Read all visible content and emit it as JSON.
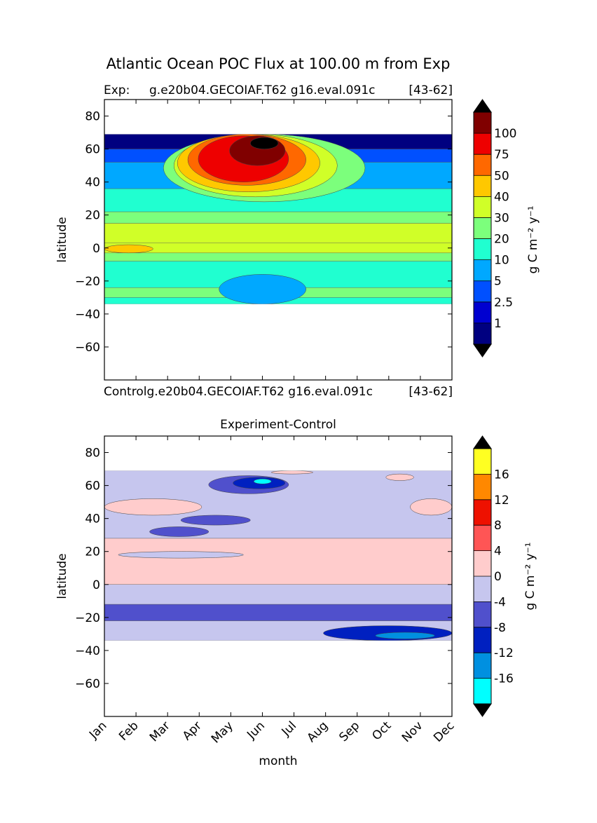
{
  "figure": {
    "suptitle": "Atlantic Ocean POC Flux at 100.00 m from Exp"
  },
  "chart_data": [
    {
      "type": "heatmap",
      "title_left": "Exp:",
      "title_center": "g.e20b04.GECOIAF.T62 g16.eval.091c",
      "title_right": "[43-62]",
      "xlabel": "",
      "ylabel": "latitude",
      "ylim": [
        -80,
        90
      ],
      "yticks": [
        "80",
        "60",
        "40",
        "20",
        "0",
        "−20",
        "−40",
        "−60"
      ],
      "ytick_values": [
        80,
        60,
        40,
        20,
        0,
        -20,
        -40,
        -60
      ],
      "months": [
        "Jan",
        "Feb",
        "Mar",
        "Apr",
        "May",
        "Jun",
        "Jul",
        "Aug",
        "Sep",
        "Oct",
        "Nov",
        "Dec"
      ],
      "data_lat_range": [
        -34,
        69
      ],
      "colorbar": {
        "label": "g C m⁻² y⁻¹",
        "levels": [
          "1",
          "2.5",
          "5",
          "10",
          "20",
          "30",
          "40",
          "50",
          "75",
          "100"
        ],
        "colors": [
          "#000080",
          "#0000d0",
          "#0050ff",
          "#00a8ff",
          "#20ffd0",
          "#7cff7c",
          "#d0ff28",
          "#ffc800",
          "#ff6800",
          "#ee0000",
          "#800000"
        ],
        "extend_colors": [
          "#000000",
          "#000000"
        ]
      },
      "bands": [
        {
          "lat": [
            -34,
            -30
          ],
          "level_index": 4
        },
        {
          "lat": [
            -30,
            -24
          ],
          "level_index": 5
        },
        {
          "lat": [
            -24,
            -8
          ],
          "level_index": 4
        },
        {
          "lat": [
            -8,
            -3
          ],
          "level_index": 5
        },
        {
          "lat": [
            -3,
            3
          ],
          "level_index": 6
        },
        {
          "lat": [
            3,
            15
          ],
          "level_index": 6
        },
        {
          "lat": [
            15,
            22
          ],
          "level_index": 5
        },
        {
          "lat": [
            22,
            36
          ],
          "level_index": 4
        },
        {
          "lat": [
            36,
            52
          ],
          "level_index": 3
        },
        {
          "lat": [
            52,
            60
          ],
          "level_index": 2
        },
        {
          "lat": [
            60,
            69
          ],
          "level_index": 0
        }
      ],
      "features": [
        {
          "name": "southern-low",
          "lon": [
            0.33,
            0.58
          ],
          "lat": [
            -34,
            -16
          ],
          "level_index": 3
        },
        {
          "name": "equatorial-high",
          "lon": [
            0.0,
            0.14
          ],
          "lat": [
            -3,
            2
          ],
          "level_index": 7
        },
        {
          "name": "bloom-outer",
          "lon": [
            0.17,
            0.75
          ],
          "lat": [
            28,
            69
          ],
          "level_index": 5
        },
        {
          "name": "bloom-40",
          "lon": [
            0.2,
            0.67
          ],
          "lat": [
            31,
            69
          ],
          "level_index": 6
        },
        {
          "name": "bloom-50",
          "lon": [
            0.21,
            0.62
          ],
          "lat": [
            34,
            69
          ],
          "level_index": 7
        },
        {
          "name": "bloom-75",
          "lon": [
            0.24,
            0.58
          ],
          "lat": [
            38,
            69
          ],
          "level_index": 8
        },
        {
          "name": "bloom-100",
          "lon": [
            0.27,
            0.53
          ],
          "lat": [
            40,
            68
          ],
          "level_index": 9
        },
        {
          "name": "bloom-peak",
          "lon": [
            0.36,
            0.52
          ],
          "lat": [
            50,
            68
          ],
          "level_index": 10
        },
        {
          "name": "bloom-core",
          "lon": [
            0.42,
            0.5
          ],
          "lat": [
            60,
            67
          ],
          "level_index": 11
        }
      ]
    },
    {
      "type": "heatmap",
      "title": "Experiment-Control",
      "top_left_label": "Controlg.e20b04.GECOIAF.T62 g16.eval.091c",
      "top_right_label": "[43-62]",
      "xlabel": "month",
      "ylabel": "latitude",
      "ylim": [
        -80,
        90
      ],
      "yticks": [
        "80",
        "60",
        "40",
        "20",
        "0",
        "−20",
        "−40",
        "−60"
      ],
      "ytick_values": [
        80,
        60,
        40,
        20,
        0,
        -20,
        -40,
        -60
      ],
      "months": [
        "Jan",
        "Feb",
        "Mar",
        "Apr",
        "May",
        "Jun",
        "Jul",
        "Aug",
        "Sep",
        "Oct",
        "Nov",
        "Dec"
      ],
      "data_lat_range": [
        -34,
        69
      ],
      "colorbar": {
        "label": "g C m⁻² y⁻¹",
        "levels": [
          "-16",
          "-12",
          "-8",
          "-4",
          "0",
          "4",
          "8",
          "12",
          "16"
        ],
        "colors": [
          "#00ffff",
          "#0090e0",
          "#0020c0",
          "#5050cc",
          "#c6c6ee",
          "#ffcccc",
          "#ff5555",
          "#ee1100",
          "#ff8800",
          "#ffff22"
        ],
        "extend_colors": [
          "#000000",
          "#000000"
        ]
      },
      "bands": [
        {
          "lat": [
            -34,
            -22
          ],
          "level_index": 4
        },
        {
          "lat": [
            -22,
            -12
          ],
          "level_index": 3
        },
        {
          "lat": [
            -12,
            0
          ],
          "level_index": 4
        },
        {
          "lat": [
            0,
            28
          ],
          "level_index": 5
        },
        {
          "lat": [
            28,
            69
          ],
          "level_index": 4
        }
      ],
      "features": [
        {
          "name": "south-deficit",
          "lon": [
            0.63,
            1.0
          ],
          "lat": [
            -34,
            -25
          ],
          "level_index": 2
        },
        {
          "name": "south-deep",
          "lon": [
            0.78,
            0.95
          ],
          "lat": [
            -33,
            -29
          ],
          "level_index": 1
        },
        {
          "name": "subtropic-neg",
          "lon": [
            0.04,
            0.4
          ],
          "lat": [
            16,
            20
          ],
          "level_index": 4
        },
        {
          "name": "west-pos",
          "lon": [
            0.0,
            0.28
          ],
          "lat": [
            42,
            52
          ],
          "level_index": 5
        },
        {
          "name": "east-pos",
          "lon": [
            0.88,
            1.0
          ],
          "lat": [
            42,
            52
          ],
          "level_index": 5
        },
        {
          "name": "mid-neg-1",
          "lon": [
            0.13,
            0.3
          ],
          "lat": [
            29,
            35
          ],
          "level_index": 3
        },
        {
          "name": "mid-neg-2",
          "lon": [
            0.22,
            0.42
          ],
          "lat": [
            36,
            42
          ],
          "level_index": 3
        },
        {
          "name": "north-neg",
          "lon": [
            0.3,
            0.53
          ],
          "lat": [
            55,
            66
          ],
          "level_index": 3
        },
        {
          "name": "north-deep",
          "lon": [
            0.37,
            0.52
          ],
          "lat": [
            58,
            65
          ],
          "level_index": 2
        },
        {
          "name": "north-core",
          "lon": [
            0.43,
            0.48
          ],
          "lat": [
            61,
            64
          ],
          "level_index": 0
        },
        {
          "name": "northeast-pos",
          "lon": [
            0.81,
            0.89
          ],
          "lat": [
            63,
            67
          ],
          "level_index": 5
        },
        {
          "name": "polar-pos",
          "lon": [
            0.48,
            0.6
          ],
          "lat": [
            67,
            69
          ],
          "level_index": 5
        }
      ]
    }
  ]
}
